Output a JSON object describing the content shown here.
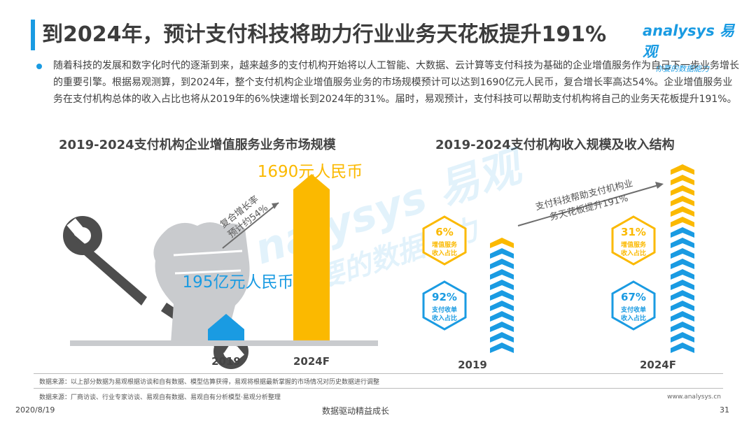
{
  "header": {
    "title": "到2024年，预计支付科技将助力行业业务天花板提升191%",
    "logo_brand": "analysys 易观",
    "logo_tagline": "你要的数据能力"
  },
  "intro": {
    "text": "随着科技的发展和数字化时代的逐渐到来，越来越多的支付机构开始将以人工智能、大数据、云计算等支付科技为基础的企业增值服务作为自己下一步业务增长的重要引擎。根据易观测算，到2024年，整个支付机构企业增值服务业务的市场规模预计可以达到1690亿元人民币，复合增长率高达54%。企业增值服务业务在支付机构总体的收入占比也将从2019年的6%快速增长到2024年的31%。届时，易观预计，支付科技可以帮助支付机构将自己的业务天花板提升191%。"
  },
  "colors": {
    "accent": "#1a9be2",
    "gold": "#fbb900",
    "gray": "#c9cbce"
  },
  "chart_data": [
    {
      "type": "bar",
      "title": "2019-2024支付机构企业增值服务业务市场规模",
      "categories": [
        "2019",
        "2024F"
      ],
      "values": [
        195,
        1690
      ],
      "value_labels": [
        "195亿元人民币",
        "1690元人民币"
      ],
      "annotation": "复合增长率预计约54%",
      "annotation_lines": [
        "复合增长率",
        "预计约54%"
      ]
    },
    {
      "type": "bar",
      "title": "2019-2024支付机构收入规模及收入结构",
      "categories": [
        "2019",
        "2024F"
      ],
      "series": [
        {
          "name": "支付收单收入占比",
          "values": [
            92,
            67
          ]
        },
        {
          "name": "增值服务收入占比",
          "values": [
            6,
            31
          ]
        }
      ],
      "percent_labels": {
        "value_added": [
          "6%",
          "31%"
        ],
        "acquiring": [
          "92%",
          "67%"
        ]
      },
      "legend_value_added": [
        "增值服务",
        "收入占比"
      ],
      "legend_acquiring": [
        "支付收单",
        "收入占比"
      ],
      "annotation": "支付科技帮助支付机构业务天花板提升191%",
      "annotation_lines": [
        "支付科技帮助支付机构业",
        "务天花板提升191%"
      ]
    }
  ],
  "footer": {
    "source1": "数据来源：以上部分数据为易观根据访谈和自有数据、模型估算获得，易观将根据最新掌握的市场情况对历史数据进行调整",
    "source2": "数据来源：厂商访谈、行业专家访谈、易观自有数据、易观自有分析模型·易观分析整理",
    "website": "www.analysys.cn",
    "date": "2020/8/19",
    "slogan": "数据驱动精益成长",
    "page": "31"
  }
}
